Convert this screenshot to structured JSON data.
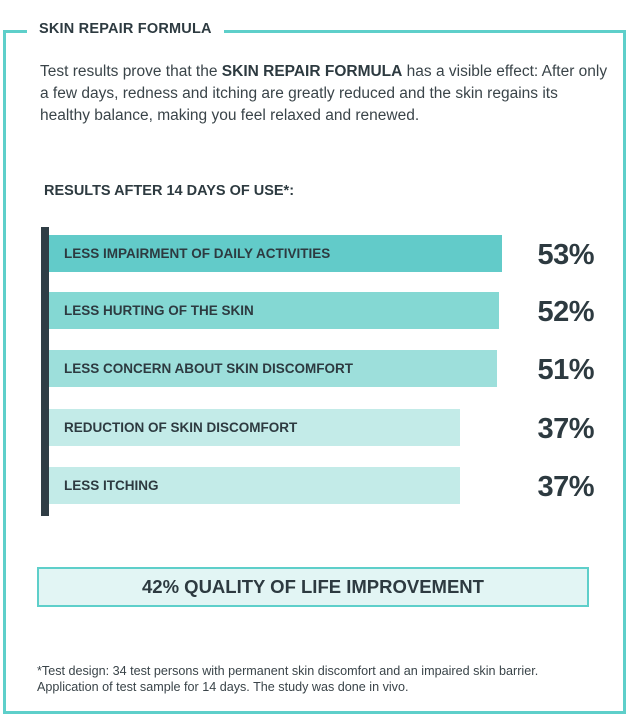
{
  "header": {
    "title": "SKIN REPAIR FORMULA"
  },
  "intro": {
    "before": "Test results prove that the ",
    "bold": "SKIN REPAIR FORMULA",
    "after": " has a visible effect: After only a few days, redness and itching are greatly reduced and the skin regains its healthy balance, making you feel relaxed and renewed."
  },
  "chart_data": {
    "type": "bar",
    "orientation": "horizontal",
    "title": "RESULTS AFTER 14 DAYS OF USE*:",
    "categories": [
      "LESS IMPAIRMENT OF DAILY ACTIVITIES",
      "LESS HURTING OF THE SKIN",
      "LESS CONCERN ABOUT SKIN DISCOMFORT",
      "REDUCTION OF SKIN DISCOMFORT",
      "LESS ITCHING"
    ],
    "values": [
      53,
      52,
      51,
      37,
      37
    ],
    "value_labels": [
      "53%",
      "52%",
      "51%",
      "37%",
      "37%"
    ],
    "colors": [
      "#62cbc9",
      "#84d8d3",
      "#9ddfdb",
      "#c3ebe8",
      "#c3ebe8"
    ],
    "axis_color": "#2f3d45",
    "grid": false
  },
  "summary": {
    "label": "42% QUALITY OF LIFE IMPROVEMENT"
  },
  "footnote": {
    "line1": "*Test design: 34 test persons with permanent skin discomfort and an impaired skin barrier.",
    "line2": "Application of test sample for 14 days. The study was done in vivo."
  },
  "colors": {
    "accent": "#5ecfca",
    "text": "#2d3a40",
    "summary_bg": "#e2f5f4"
  }
}
